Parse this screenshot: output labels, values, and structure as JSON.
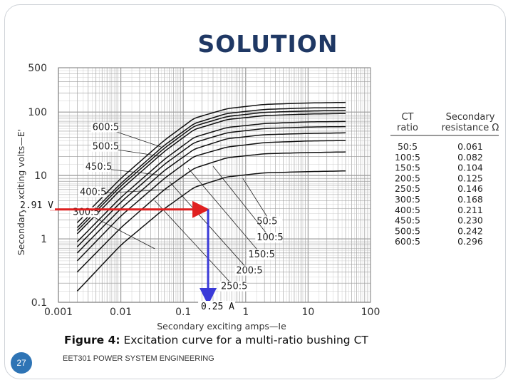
{
  "slide": {
    "title": "SOLUTION",
    "caption_label": "Figure 4:",
    "caption_text": " Excitation curve for a multi-ratio bushing CT",
    "slide_number": "27",
    "footer": "EET301 POWER SYSTEM ENGINEERING"
  },
  "colors": {
    "title": "#1f3864",
    "curves": "#111111",
    "grid": "#9a9a9a",
    "annotation_horizontal": "#e02020",
    "annotation_vertical": "#3a3ad8",
    "badge": "#2e74b5"
  },
  "chart_data": {
    "type": "line",
    "title": "",
    "xlabel": "Secondary exciting amps—Ie",
    "ylabel": "Secondary exciting volts—E'",
    "xscale": "log",
    "yscale": "log",
    "xlim": [
      0.001,
      100
    ],
    "ylim": [
      0.1,
      500
    ],
    "x_ticks": [
      "0.001",
      "0.01",
      "0.1",
      "1",
      "10",
      "100"
    ],
    "y_ticks": [
      "0.1",
      "1",
      "10",
      "100",
      "500"
    ],
    "grid": true,
    "series": [
      {
        "name": "50:5",
        "x": [
          0.002,
          0.01,
          0.05,
          0.15,
          0.5,
          2,
          10,
          40
        ],
        "y": [
          0.15,
          0.8,
          3.0,
          6.5,
          9.5,
          11,
          11.5,
          11.8
        ]
      },
      {
        "name": "100:5",
        "x": [
          0.002,
          0.01,
          0.05,
          0.15,
          0.5,
          2,
          10,
          40
        ],
        "y": [
          0.3,
          1.5,
          6.0,
          13,
          19,
          22,
          23,
          23.5
        ]
      },
      {
        "name": "150:5",
        "x": [
          0.002,
          0.01,
          0.05,
          0.15,
          0.5,
          2,
          10,
          40
        ],
        "y": [
          0.45,
          2.3,
          9.0,
          20,
          28,
          33,
          35,
          35.5
        ]
      },
      {
        "name": "200:5",
        "x": [
          0.002,
          0.01,
          0.05,
          0.15,
          0.5,
          2,
          10,
          40
        ],
        "y": [
          0.6,
          3.0,
          12,
          26,
          38,
          44,
          46,
          47
        ]
      },
      {
        "name": "250:5",
        "x": [
          0.002,
          0.01,
          0.05,
          0.15,
          0.5,
          2,
          10,
          40
        ],
        "y": [
          0.75,
          3.8,
          15,
          33,
          47,
          55,
          58,
          59
        ]
      },
      {
        "name": "300:5",
        "x": [
          0.002,
          0.01,
          0.05,
          0.15,
          0.5,
          2,
          10,
          40
        ],
        "y": [
          0.9,
          4.5,
          18,
          40,
          57,
          66,
          70,
          71
        ]
      },
      {
        "name": "400:5",
        "x": [
          0.002,
          0.01,
          0.05,
          0.15,
          0.5,
          2,
          10,
          40
        ],
        "y": [
          1.2,
          6.0,
          24,
          53,
          76,
          88,
          93,
          95
        ]
      },
      {
        "name": "450:5",
        "x": [
          0.002,
          0.01,
          0.05,
          0.15,
          0.5,
          2,
          10,
          40
        ],
        "y": [
          1.35,
          6.8,
          27,
          60,
          85,
          99,
          104,
          106
        ]
      },
      {
        "name": "500:5",
        "x": [
          0.002,
          0.01,
          0.05,
          0.15,
          0.5,
          2,
          10,
          40
        ],
        "y": [
          1.5,
          7.5,
          30,
          66,
          95,
          110,
          116,
          118
        ]
      },
      {
        "name": "600:5",
        "x": [
          0.002,
          0.01,
          0.05,
          0.15,
          0.5,
          2,
          10,
          40
        ],
        "y": [
          1.8,
          9.0,
          36,
          80,
          113,
          132,
          139,
          142
        ]
      }
    ],
    "curve_labels": [
      {
        "text": "600:5",
        "x": 0.0035,
        "y": 55,
        "target_x": 0.045,
        "target_y": 28
      },
      {
        "text": "500:5",
        "x": 0.0035,
        "y": 27,
        "target_x": 0.045,
        "target_y": 20
      },
      {
        "text": "450:5",
        "x": 0.0027,
        "y": 13,
        "target_x": 0.05,
        "target_y": 10
      },
      {
        "text": "400:5",
        "x": 0.0022,
        "y": 5.2,
        "target_x": 0.06,
        "target_y": 6
      },
      {
        "text": "300:5",
        "x": 0.0017,
        "y": 2.5,
        "target_x": 0.035,
        "target_y": 0.7
      },
      {
        "text": "50:5",
        "x": 1.5,
        "y": 1.8,
        "target_x": 0.9,
        "target_y": 9
      },
      {
        "text": "100:5",
        "x": 1.5,
        "y": 1.0,
        "target_x": 0.3,
        "target_y": 14
      },
      {
        "text": "150:5",
        "x": 1.1,
        "y": 0.54,
        "target_x": 0.12,
        "target_y": 13
      },
      {
        "text": "200:5",
        "x": 0.7,
        "y": 0.3,
        "target_x": 0.06,
        "target_y": 8
      },
      {
        "text": "250:5",
        "x": 0.4,
        "y": 0.17,
        "target_x": 0.035,
        "target_y": 4
      }
    ],
    "annotations": {
      "voltage_label": "2.91 V",
      "current_label": "0.25 A",
      "point": {
        "x": 0.25,
        "y": 2.91
      }
    },
    "table": {
      "headers": [
        [
          "CT",
          "ratio"
        ],
        [
          "Secondary",
          "resistance Ω"
        ]
      ],
      "rows": [
        [
          "50:5",
          "0.061"
        ],
        [
          "100:5",
          "0.082"
        ],
        [
          "150:5",
          "0.104"
        ],
        [
          "200:5",
          "0.125"
        ],
        [
          "250:5",
          "0.146"
        ],
        [
          "300:5",
          "0.168"
        ],
        [
          "400:5",
          "0.211"
        ],
        [
          "450:5",
          "0.230"
        ],
        [
          "500:5",
          "0.242"
        ],
        [
          "600:5",
          "0.296"
        ]
      ]
    }
  }
}
